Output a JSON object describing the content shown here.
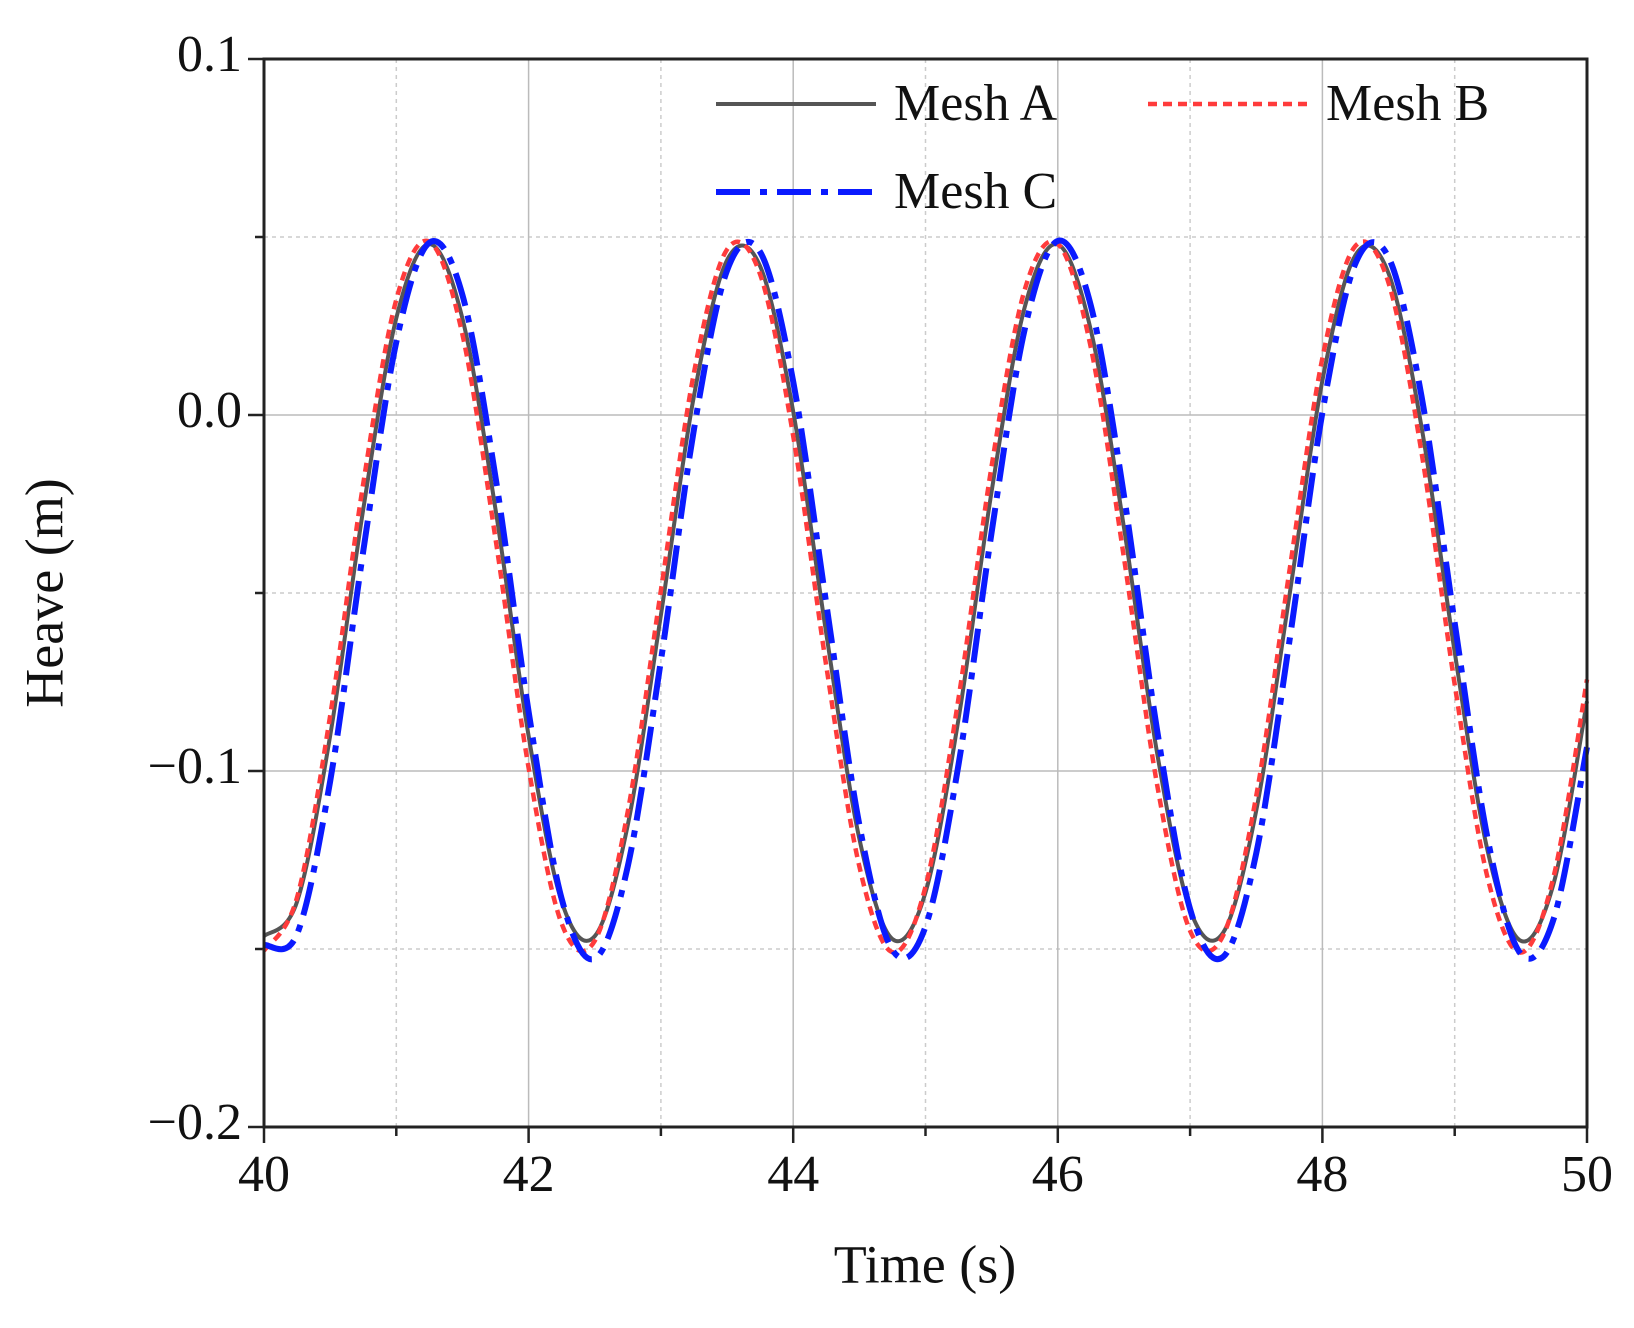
{
  "chart_data": {
    "type": "line",
    "x_label": "Time (s)",
    "y_label": "Heave (m)",
    "x": [
      40,
      40.25,
      40.5,
      40.75,
      41,
      41.25,
      41.5,
      41.75,
      42,
      42.25,
      42.5,
      42.75,
      43,
      43.25,
      43.5,
      43.75,
      44,
      44.25,
      44.5,
      44.75,
      45,
      45.25,
      45.5,
      45.75,
      46,
      46.25,
      46.5,
      46.75,
      47,
      47.25,
      47.5,
      47.75,
      48,
      48.25,
      48.5,
      48.75,
      49,
      49.25,
      49.5,
      49.75,
      50
    ],
    "series": [
      {
        "name": "Mesh A",
        "color": "#555555",
        "dash": "solid",
        "values": [
          -0.1464,
          -0.1367,
          -0.0901,
          -0.0265,
          0.0272,
          0.048,
          0.0271,
          -0.0265,
          -0.0901,
          -0.1367,
          -0.1464,
          -0.1151,
          -0.0562,
          0.0054,
          0.0435,
          0.0418,
          0.001,
          -0.0614,
          -0.119,
          -0.1472,
          -0.1341,
          -0.0853,
          -0.0214,
          0.0303,
          0.0479,
          0.0238,
          -0.0316,
          -0.0948,
          -0.139,
          -0.1454,
          -0.1111,
          -0.0509,
          0.0097,
          0.0449,
          0.0398,
          -0.0035,
          -0.0666,
          -0.1226,
          -0.1477,
          -0.1313,
          -0.0804
        ]
      },
      {
        "name": "Mesh B",
        "color": "#ff3b3b",
        "dash": "dot",
        "values": [
          -0.1505,
          -0.1355,
          -0.0845,
          -0.0193,
          0.0324,
          0.0487,
          0.0226,
          -0.0348,
          -0.0991,
          -0.1429,
          -0.1477,
          -0.1113,
          -0.0493,
          0.0119,
          0.0465,
          0.0395,
          -0.0059,
          -0.0705,
          -0.1268,
          -0.1509,
          -0.1325,
          -0.0795,
          -0.0143,
          0.0352,
          0.0481,
          0.0189,
          -0.0401,
          -0.1037,
          -0.1449,
          -0.1462,
          -0.107,
          -0.044,
          0.016,
          0.0475,
          0.0371,
          -0.0107,
          -0.0757,
          -0.1302,
          -0.151,
          -0.1293,
          -0.0743
        ]
      },
      {
        "name": "Mesh C",
        "color": "#0a1aff",
        "dash": "dashdot",
        "values": [
          -0.1489,
          -0.1458,
          -0.1029,
          -0.0383,
          0.0205,
          0.0484,
          0.0337,
          -0.0175,
          -0.0833,
          -0.1359,
          -0.1527,
          -0.1267,
          -0.069,
          -0.004,
          0.0406,
          0.0458,
          0.0094,
          -0.053,
          -0.1151,
          -0.1503,
          -0.1437,
          -0.0981,
          -0.0329,
          0.0241,
          0.0489,
          0.0307,
          -0.0226,
          -0.0884,
          -0.1388,
          -0.1522,
          -0.1231,
          -0.0637,
          0.0007,
          0.0426,
          0.0443,
          0.0051,
          -0.0584,
          -0.1192,
          -0.1514,
          -0.1413,
          -0.0933
        ]
      }
    ],
    "xlim": [
      40,
      50
    ],
    "ylim": [
      -0.2,
      0.1
    ],
    "xticks": [
      40,
      42,
      44,
      46,
      48,
      50
    ],
    "yticks": [
      {
        "value": -0.2,
        "label": "−0.2"
      },
      {
        "value": -0.1,
        "label": "−0.1"
      },
      {
        "value": 0,
        "label": "0.0"
      },
      0.1
    ],
    "xminorticks": [
      41,
      43,
      45,
      47,
      49
    ],
    "yminorticks": [
      -0.15,
      -0.05,
      0.05
    ],
    "grid": true,
    "legend": "upper right"
  }
}
